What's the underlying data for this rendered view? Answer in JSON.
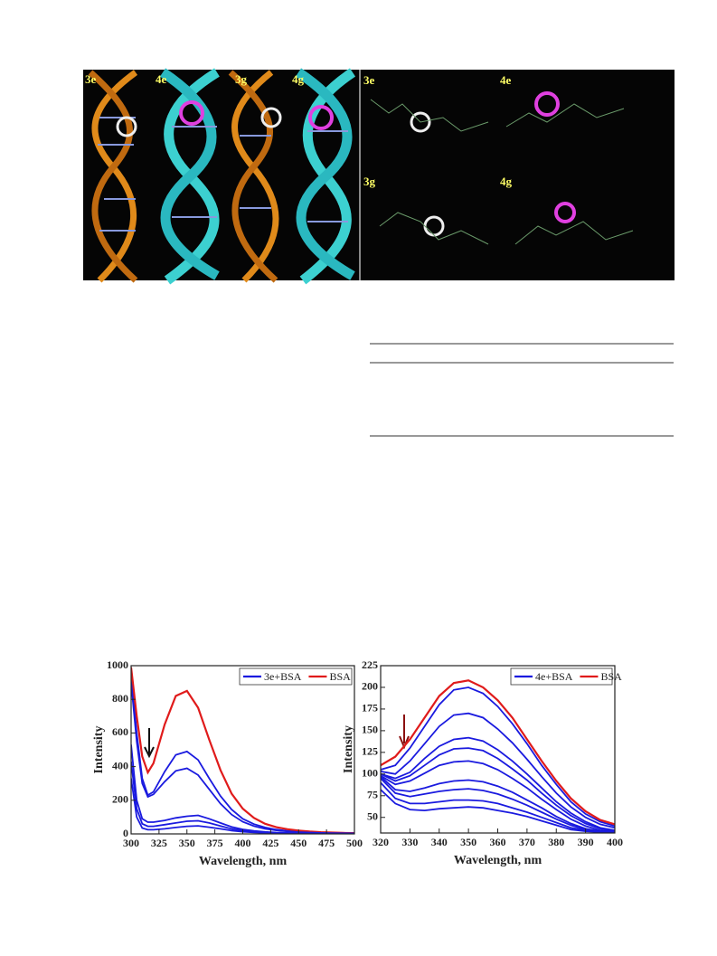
{
  "figure_top": {
    "left_labels": [
      "3e",
      "4e",
      "3g",
      "4g"
    ],
    "right_labels": [
      "3e",
      "4e",
      "3g",
      "4g"
    ]
  },
  "charts": [
    {
      "type": "line",
      "xlabel": "Wavelength, nm",
      "ylabel": "Intensity",
      "xlim": [
        300,
        500
      ],
      "xticks": [
        300,
        325,
        350,
        375,
        400,
        425,
        450,
        475,
        500
      ],
      "ylim": [
        0,
        1000
      ],
      "yticks": [
        0,
        200,
        400,
        600,
        800,
        1000
      ],
      "legend": "upper right",
      "x": [
        300,
        305,
        310,
        315,
        320,
        330,
        340,
        350,
        360,
        370,
        380,
        390,
        400,
        410,
        420,
        430,
        440,
        450,
        460,
        470,
        480,
        490,
        500
      ],
      "series": [
        {
          "name": "3e+BSA",
          "color": "#1a1adf",
          "values": [
            960,
            600,
            330,
            230,
            250,
            370,
            470,
            490,
            440,
            330,
            225,
            145,
            90,
            58,
            38,
            26,
            18,
            13,
            10,
            8,
            6,
            5,
            4
          ]
        },
        {
          "name": "BSA",
          "color": "#e01b1b",
          "values": [
            990,
            700,
            460,
            365,
            420,
            650,
            820,
            850,
            750,
            560,
            380,
            240,
            150,
            95,
            60,
            40,
            28,
            20,
            14,
            10,
            8,
            6,
            5
          ]
        },
        {
          "color": "#1a1adf",
          "values": [
            900,
            550,
            300,
            220,
            235,
            310,
            375,
            390,
            350,
            265,
            180,
            115,
            72,
            46,
            30,
            21,
            15,
            11,
            8,
            6,
            5,
            4,
            3
          ]
        },
        {
          "color": "#1a1adf",
          "values": [
            530,
            200,
            90,
            70,
            70,
            80,
            95,
            105,
            110,
            90,
            65,
            42,
            27,
            18,
            12,
            8,
            6,
            5,
            4,
            3,
            3,
            2,
            2
          ]
        },
        {
          "color": "#1a1adf",
          "values": [
            430,
            150,
            60,
            45,
            45,
            55,
            65,
            75,
            78,
            65,
            47,
            30,
            20,
            13,
            9,
            6,
            5,
            4,
            3,
            2,
            2,
            2,
            1
          ]
        },
        {
          "color": "#1a1adf",
          "values": [
            330,
            100,
            35,
            25,
            25,
            30,
            38,
            45,
            48,
            40,
            30,
            20,
            13,
            9,
            6,
            4,
            3,
            3,
            2,
            2,
            1,
            1,
            1
          ]
        }
      ]
    },
    {
      "type": "line",
      "xlabel": "Wavelength, nm",
      "ylabel": "Intensity",
      "xlim": [
        320,
        400
      ],
      "xticks": [
        320,
        330,
        340,
        350,
        360,
        370,
        380,
        390,
        400
      ],
      "ylim": [
        32,
        225
      ],
      "yticks": [
        50,
        75,
        100,
        125,
        150,
        175,
        200,
        225
      ],
      "legend": "upper right",
      "x": [
        320,
        325,
        330,
        335,
        340,
        345,
        350,
        355,
        360,
        365,
        370,
        375,
        380,
        385,
        390,
        395,
        400
      ],
      "series": [
        {
          "name": "4e+BSA",
          "color": "#1a1adf",
          "values": [
            105,
            110,
            130,
            155,
            180,
            197,
            200,
            193,
            178,
            158,
            135,
            110,
            88,
            68,
            54,
            45,
            40
          ]
        },
        {
          "name": "BSA",
          "color": "#e01b1b",
          "values": [
            110,
            120,
            140,
            165,
            190,
            205,
            208,
            200,
            185,
            165,
            140,
            115,
            92,
            72,
            57,
            47,
            42
          ]
        },
        {
          "color": "#1a1adf",
          "values": [
            103,
            100,
            115,
            135,
            155,
            168,
            170,
            165,
            152,
            136,
            117,
            97,
            78,
            62,
            50,
            42,
            38
          ]
        },
        {
          "color": "#1a1adf",
          "values": [
            100,
            95,
            102,
            118,
            132,
            140,
            142,
            138,
            128,
            115,
            100,
            84,
            68,
            55,
            45,
            38,
            35
          ]
        },
        {
          "color": "#1a1adf",
          "values": [
            100,
            92,
            98,
            110,
            122,
            129,
            130,
            127,
            118,
            106,
            93,
            78,
            64,
            52,
            43,
            37,
            34
          ]
        },
        {
          "color": "#1a1adf",
          "values": [
            98,
            88,
            92,
            101,
            110,
            114,
            115,
            112,
            105,
            95,
            84,
            71,
            59,
            48,
            40,
            35,
            33
          ]
        },
        {
          "color": "#1a1adf",
          "values": [
            97,
            82,
            80,
            84,
            89,
            92,
            93,
            91,
            86,
            79,
            70,
            61,
            51,
            43,
            37,
            34,
            33
          ]
        },
        {
          "color": "#1a1adf",
          "values": [
            95,
            78,
            74,
            77,
            80,
            82,
            83,
            81,
            77,
            71,
            64,
            56,
            48,
            41,
            36,
            34,
            33
          ]
        },
        {
          "color": "#1a1adf",
          "values": [
            90,
            72,
            66,
            66,
            68,
            70,
            70,
            69,
            66,
            61,
            56,
            50,
            44,
            38,
            35,
            34,
            33
          ]
        },
        {
          "color": "#1a1adf",
          "values": [
            82,
            66,
            59,
            58,
            60,
            61,
            62,
            61,
            58,
            55,
            51,
            46,
            41,
            36,
            34,
            33,
            33
          ]
        }
      ]
    }
  ]
}
